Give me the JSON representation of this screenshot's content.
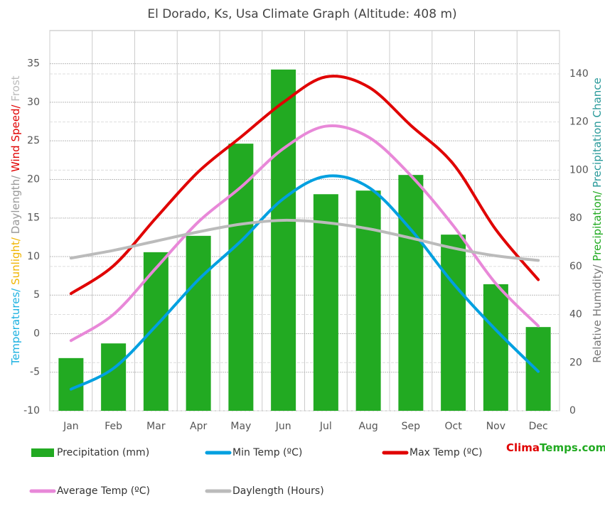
{
  "chart_data": {
    "type": "combo",
    "title": "El Dorado, Ks, Usa Climate Graph (Altitude: 408 m)",
    "y_label_parts": [
      {
        "text": "Temperatures/",
        "color": "#1ab0e0"
      },
      {
        "text": " Sunlight/",
        "color": "#f0b400"
      },
      {
        "text": " Daylength/",
        "color": "#999999"
      },
      {
        "text": " Wind Speed/",
        "color": "#e00000"
      },
      {
        "text": " Frost",
        "color": "#bbbbbb"
      }
    ],
    "y2_label_parts": [
      {
        "text": "Relative Humidity/",
        "color": "#777777"
      },
      {
        "text": " Precipitation/",
        "color": "#22aa22"
      },
      {
        "text": " Precipitation Chance",
        "color": "#2a9a9a"
      }
    ],
    "brand_parts": [
      {
        "text": "Clima",
        "color": "#e00000"
      },
      {
        "text": "Temps.com",
        "color": "#22aa22"
      }
    ],
    "categories": [
      "Jan",
      "Feb",
      "Mar",
      "Apr",
      "May",
      "Jun",
      "Jul",
      "Aug",
      "Sep",
      "Oct",
      "Nov",
      "Dec"
    ],
    "ylim": [
      -10,
      39.3
    ],
    "yticks": [
      -10,
      -5,
      0,
      5,
      10,
      15,
      20,
      25,
      30,
      35
    ],
    "y2lim": [
      0,
      158
    ],
    "y2ticks": [
      0,
      20,
      40,
      60,
      80,
      100,
      120,
      140
    ],
    "grid": true,
    "series": [
      {
        "name": "Precipitation (mm)",
        "type": "bar",
        "axis": "y2",
        "color": "#22aa22",
        "values": [
          21.9,
          28,
          65.9,
          72.7,
          111,
          141.8,
          90,
          91.5,
          98,
          73.2,
          52.6,
          34.8
        ]
      },
      {
        "name": "Min Temp (ºC)",
        "type": "line",
        "color": "#00a0e0",
        "values": [
          -7.2,
          -4.5,
          1,
          7,
          12,
          17.5,
          20.4,
          19,
          13.5,
          6.5,
          0.5,
          -4.9
        ]
      },
      {
        "name": "Max Temp (ºC)",
        "type": "line",
        "color": "#e00000",
        "values": [
          5.2,
          8.8,
          15,
          21,
          25.5,
          30,
          33.3,
          32,
          27,
          22,
          13.5,
          7
        ]
      },
      {
        "name": "Average Temp (ºC)",
        "type": "line",
        "color": "#e888d8",
        "values": [
          -0.9,
          2.5,
          8.5,
          14.5,
          19,
          24,
          26.9,
          25.5,
          20.5,
          14,
          6.5,
          1
        ]
      },
      {
        "name": "Daylength (Hours)",
        "type": "line",
        "color": "#bbbbbb",
        "values": [
          9.8,
          10.8,
          12,
          13.2,
          14.2,
          14.7,
          14.4,
          13.6,
          12.4,
          11.1,
          10.1,
          9.5
        ]
      }
    ]
  }
}
